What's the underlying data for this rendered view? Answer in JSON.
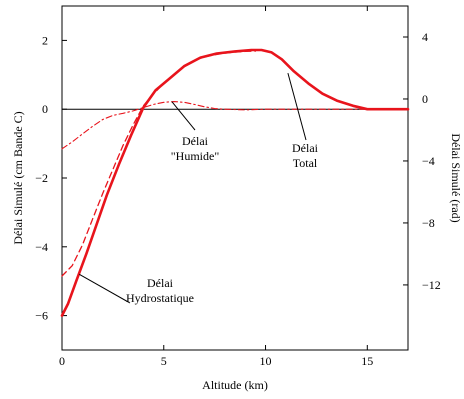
{
  "chart_data": {
    "type": "line",
    "xlabel": "Altitude (km)",
    "ylabel": "Délai Simulé (cm Bande C)",
    "ylabel_right": "Délai Simulé (rad)",
    "xlim": [
      0,
      17
    ],
    "ylim": [
      -7,
      3
    ],
    "ylim_right": [
      -16.2,
      6.0
    ],
    "xticks": [
      0,
      5,
      10,
      15
    ],
    "yticks": [
      -6,
      -4,
      -2,
      0,
      2
    ],
    "yticks_right": [
      -12,
      -8,
      -4,
      0,
      4
    ],
    "xtick_labels": [
      "0",
      "5",
      "10",
      "15"
    ],
    "ytick_labels": [
      "−6",
      "−4",
      "−2",
      "0",
      "2"
    ],
    "ytick_right_labels": [
      "−12",
      "−8",
      "−4",
      "0",
      "4"
    ],
    "zero_line": true,
    "grid": false,
    "series": [
      {
        "name": "Délai Total",
        "style": "solid-thick",
        "color": "#e8141c",
        "x": [
          0,
          0.3,
          0.7,
          1.2,
          1.7,
          2.2,
          2.8,
          3.4,
          4.0,
          4.6,
          5.3,
          6.0,
          6.8,
          7.6,
          8.5,
          9.3,
          9.8,
          10.3,
          10.8,
          11.4,
          12.1,
          12.8,
          13.5,
          14.3,
          15.0,
          15.5,
          16.5,
          17.0
        ],
        "y": [
          -6.0,
          -5.65,
          -5.0,
          -4.2,
          -3.35,
          -2.5,
          -1.6,
          -0.75,
          0.05,
          0.55,
          0.9,
          1.25,
          1.5,
          1.62,
          1.68,
          1.72,
          1.72,
          1.65,
          1.45,
          1.1,
          0.75,
          0.45,
          0.25,
          0.1,
          0.0,
          0.0,
          0.0,
          0.0
        ]
      },
      {
        "name": "Délai Hydrostatique",
        "style": "dashed",
        "color": "#e8141c",
        "x": [
          0,
          0.5,
          1.0,
          1.5,
          2.0,
          2.5,
          3.0,
          3.5,
          4.0,
          4.5,
          5.0,
          5.5,
          6.0,
          6.5,
          7.0,
          7.5,
          8.0,
          8.5,
          9.0,
          9.5
        ],
        "y": [
          -4.85,
          -4.55,
          -3.95,
          -3.2,
          -2.45,
          -1.75,
          -1.05,
          -0.45,
          0.1,
          0.45,
          0.75,
          1.0,
          1.25,
          1.42,
          1.52,
          1.58,
          1.63,
          1.66,
          1.68,
          1.69
        ]
      },
      {
        "name": "Délai \"Humide\"",
        "style": "dashdot",
        "color": "#e8141c",
        "x": [
          0,
          0.5,
          1.0,
          1.5,
          2.0,
          2.5,
          3.0,
          3.5,
          4.0,
          4.5,
          5.0,
          5.5,
          6.0,
          6.5,
          7.0,
          7.5,
          8.0,
          9.0,
          10.0,
          11.0,
          12.0,
          13.0,
          14.0,
          15.0,
          17.0
        ],
        "y": [
          -1.15,
          -0.95,
          -0.72,
          -0.5,
          -0.3,
          -0.18,
          -0.12,
          -0.05,
          0.05,
          0.14,
          0.2,
          0.22,
          0.2,
          0.14,
          0.07,
          0.02,
          0.0,
          -0.02,
          0.0,
          0.0,
          0.0,
          0.0,
          0.0,
          0.0,
          0.0
        ]
      }
    ],
    "annotations": [
      {
        "lines": [
          "Délai",
          "Hydrostatique"
        ]
      },
      {
        "lines": [
          "Délai",
          "\"Humide\""
        ]
      },
      {
        "lines": [
          "Délai",
          "Total"
        ]
      }
    ]
  }
}
